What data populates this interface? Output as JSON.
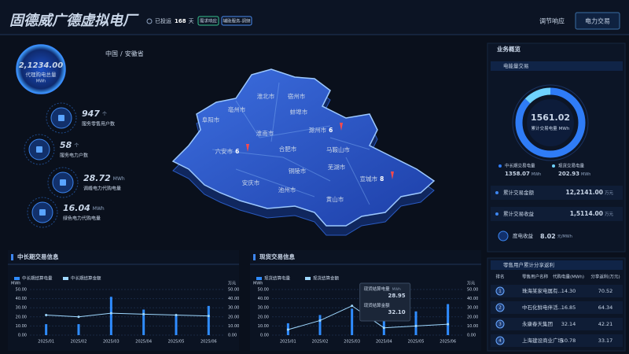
{
  "header": {
    "title": "固德威广德虚拟电厂",
    "status_label": "已投运",
    "status_days": 168,
    "status_unit": "天",
    "tags": [
      "需求响应",
      "辅助服务-调频"
    ],
    "nav": [
      "调节响应",
      "电力交易"
    ]
  },
  "breadcrumb": [
    "中国",
    "安徽省"
  ],
  "left_stats": {
    "total": {
      "value": "2,1234.00",
      "label": "代理购电总量",
      "unit": "MWh"
    },
    "items": [
      {
        "value": 947,
        "unit": "个",
        "label": "服务零售用户数"
      },
      {
        "value": 58,
        "unit": "个",
        "label": "服务电力户数"
      },
      {
        "value": 28.72,
        "unit": "MWh",
        "label": "调峰电力代购电量"
      },
      {
        "value": 16.04,
        "unit": "MWh",
        "label": "绿色电力代购电量"
      }
    ]
  },
  "map": {
    "cities": [
      {
        "name": "淮北市"
      },
      {
        "name": "宿州市"
      },
      {
        "name": "亳州市"
      },
      {
        "name": "蚌埠市"
      },
      {
        "name": "阜阳市"
      },
      {
        "name": "淮南市"
      },
      {
        "name": "滁州市",
        "count": 6
      },
      {
        "name": "六安市",
        "count": 6
      },
      {
        "name": "合肥市"
      },
      {
        "name": "马鞍山市"
      },
      {
        "name": "芜湖市"
      },
      {
        "name": "铜陵市"
      },
      {
        "name": "宣城市",
        "count": 8
      },
      {
        "name": "安庆市"
      },
      {
        "name": "池州市"
      },
      {
        "name": "黄山市"
      }
    ]
  },
  "overview": {
    "title": "业务概览",
    "section": "电能量交易",
    "total": {
      "value": 1561.02,
      "label": "累计交易电量",
      "unit": "MWh"
    },
    "parts": [
      {
        "name": "中长期交易电量",
        "value": 1358.07,
        "unit": "MWh",
        "color": "#2f7cf6"
      },
      {
        "name": "现货交易电量",
        "value": 202.93,
        "unit": "MWh",
        "color": "#6fd3ff"
      }
    ],
    "rows": [
      {
        "label": "累计交易金额",
        "value": "12,2141.00",
        "unit": "万元"
      },
      {
        "label": "累计交易收益",
        "value": "1,5114.00",
        "unit": "万元"
      }
    ],
    "kwh": {
      "label": "度电收益",
      "value": 8.02,
      "unit": "元/MWh"
    }
  },
  "ranking": {
    "title": "零售用户累计分享返利",
    "columns": [
      "排名",
      "零售用户名称",
      "代购电量(MWh)",
      "分享返利(万元)"
    ],
    "rows": [
      [
        1,
        "珠海某家电属有...",
        "14.30",
        "70.52"
      ],
      [
        2,
        "中石化鲜电伴活...",
        "16.85",
        "64.34"
      ],
      [
        3,
        "永康春天集团",
        "32.14",
        "42.21"
      ],
      [
        4,
        "上海建设商业广场",
        "10.78",
        "33.17"
      ]
    ]
  },
  "chart_data": [
    {
      "type": "bar",
      "title": "中长期交易信息",
      "categories": [
        "2025/01",
        "2025/02",
        "2025/03",
        "2025/04",
        "2025/05",
        "2025/06"
      ],
      "ylabel": "MWh",
      "y2label": "万元",
      "ylim": [
        0,
        50
      ],
      "y2lim": [
        0,
        50
      ],
      "yticks": [
        {
          "value": 0,
          "label": "0.00"
        },
        {
          "value": 10,
          "label": "10.00"
        },
        {
          "value": 20,
          "label": "20.00"
        },
        {
          "value": 30,
          "label": "30.00"
        },
        {
          "value": 40,
          "label": "40.00"
        },
        {
          "value": 50,
          "label": "50.00"
        }
      ],
      "y2ticks": [
        {
          "value": 0,
          "label": "0.00"
        },
        {
          "value": 10,
          "label": "10.00"
        },
        {
          "value": 20,
          "label": "20.00"
        },
        {
          "value": 30,
          "label": "30.00"
        },
        {
          "value": 40,
          "label": "40.00"
        },
        {
          "value": 50,
          "label": "50.00"
        }
      ],
      "series": [
        {
          "name": "中长期结算电量",
          "type": "bar",
          "color": "#2f8cff",
          "values": [
            12,
            12,
            42,
            28,
            22,
            32
          ]
        },
        {
          "name": "中长期结算金额",
          "type": "line",
          "axis": "y2",
          "color": "#9fd8ff",
          "values": [
            22,
            20,
            24,
            23,
            22,
            21
          ]
        }
      ]
    },
    {
      "type": "bar",
      "title": "现货交易信息",
      "categories": [
        "2025/01",
        "2025/02",
        "2025/03",
        "2025/04",
        "2025/05",
        "2025/06"
      ],
      "ylabel": "MWh",
      "y2label": "万元",
      "ylim": [
        0,
        50
      ],
      "y2lim": [
        0,
        50
      ],
      "yticks": [
        {
          "value": 0,
          "label": "0.00"
        },
        {
          "value": 10,
          "label": "10.00"
        },
        {
          "value": 20,
          "label": "20.00"
        },
        {
          "value": 30,
          "label": "30.00"
        },
        {
          "value": 40,
          "label": "40.00"
        },
        {
          "value": 50,
          "label": "50.00"
        }
      ],
      "y2ticks": [
        {
          "value": 0,
          "label": "0.00"
        },
        {
          "value": 10,
          "label": "10.00"
        },
        {
          "value": 20,
          "label": "20.00"
        },
        {
          "value": 30,
          "label": "30.00"
        },
        {
          "value": 40,
          "label": "40.00"
        },
        {
          "value": 50,
          "label": "50.00"
        }
      ],
      "series": [
        {
          "name": "现货结算电量",
          "type": "bar",
          "color": "#2f8cff",
          "values": [
            13,
            22,
            28.95,
            18,
            26,
            34
          ]
        },
        {
          "name": "现货结算金额",
          "type": "line",
          "axis": "y2",
          "color": "#9fd8ff",
          "values": [
            6,
            16,
            32.1,
            8,
            10,
            12
          ],
          "value_labels": [
            null,
            null,
            "32.10",
            null,
            null,
            null
          ]
        }
      ],
      "tooltip_index": 2
    }
  ]
}
